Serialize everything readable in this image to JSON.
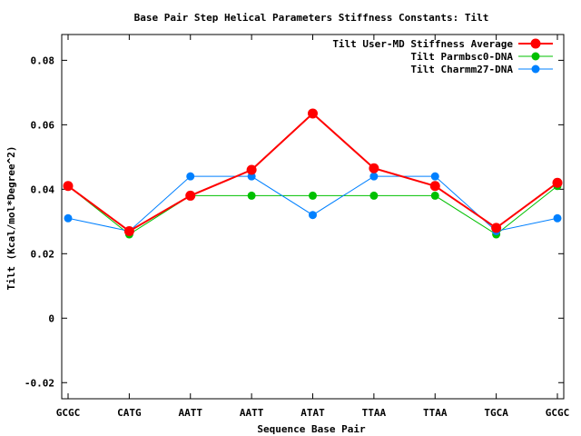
{
  "chart_data": {
    "type": "line",
    "title": "Base Pair Step Helical Parameters Stiffness Constants: Tilt",
    "xlabel": "Sequence Base Pair",
    "ylabel": "Tilt (Kcal/mol*Degree^2)",
    "categories": [
      "GCGC",
      "CATG",
      "AATT",
      "AATT",
      "ATAT",
      "TTAA",
      "TTAA",
      "TGCA",
      "GCGC"
    ],
    "ylim": [
      -0.025,
      0.088
    ],
    "yticks": [
      -0.02,
      0,
      0.02,
      0.04,
      0.06,
      0.08
    ],
    "ytick_labels": [
      "-0.02",
      "0",
      "0.02",
      "0.04",
      "0.06",
      "0.08"
    ],
    "grid": false,
    "legend": "top-right",
    "series": [
      {
        "name": "Tilt User-MD Stiffness Average",
        "color": "#ff0000",
        "values": [
          0.041,
          0.027,
          0.038,
          0.046,
          0.0635,
          0.0465,
          0.041,
          0.028,
          0.042
        ]
      },
      {
        "name": "Tilt Parmbsc0-DNA",
        "color": "#00c000",
        "values": [
          0.041,
          0.026,
          0.038,
          0.038,
          0.038,
          0.038,
          0.038,
          0.026,
          0.041
        ]
      },
      {
        "name": "Tilt Charmm27-DNA",
        "color": "#0080ff",
        "values": [
          0.031,
          0.027,
          0.044,
          0.044,
          0.032,
          0.044,
          0.044,
          0.027,
          0.031
        ]
      }
    ]
  }
}
